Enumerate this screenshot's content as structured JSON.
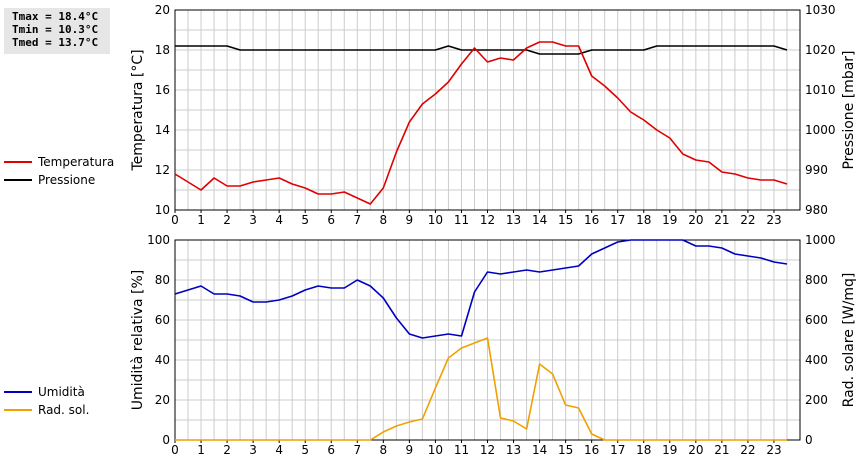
{
  "stats": {
    "tmax": "Tmax = 18.4°C",
    "tmin": "Tmin = 10.3°C",
    "tmed": "Tmed = 13.7°C"
  },
  "colors": {
    "temperature": "#e00000",
    "pressure": "#000000",
    "humidity": "#0000c0",
    "radiation": "#f0a000",
    "grid": "#cccccc"
  },
  "chart_data": [
    {
      "type": "line",
      "xlabel": "",
      "ylabel": "Temperatura [°C]",
      "y2label": "Pressione [mbar]",
      "xlim": [
        0,
        24
      ],
      "ylim": [
        10,
        20
      ],
      "y2lim": [
        980,
        1030
      ],
      "xticks": [
        "0",
        "1",
        "2",
        "3",
        "4",
        "5",
        "6",
        "7",
        "8",
        "9",
        "10",
        "11",
        "12",
        "13",
        "14",
        "15",
        "16",
        "17",
        "18",
        "19",
        "20",
        "21",
        "22",
        "23"
      ],
      "yticks": [
        "10",
        "12",
        "14",
        "16",
        "18",
        "20"
      ],
      "y2ticks": [
        "980",
        "990",
        "1000",
        "1010",
        "1020",
        "1030"
      ],
      "grid": true,
      "legend": "left",
      "series": [
        {
          "name": "Temperatura",
          "axis": "left",
          "color": "#e00000",
          "x": [
            0,
            0.5,
            1,
            1.5,
            2,
            2.5,
            3,
            3.5,
            4,
            4.5,
            5,
            5.5,
            6,
            6.5,
            7,
            7.5,
            8,
            8.5,
            9,
            9.5,
            10,
            10.5,
            11,
            11.5,
            12,
            12.5,
            13,
            13.5,
            14,
            14.5,
            15,
            15.5,
            16,
            16.5,
            17,
            17.5,
            18,
            18.5,
            19,
            19.5,
            20,
            20.5,
            21,
            21.5,
            22,
            22.5,
            23,
            23.5
          ],
          "y": [
            11.8,
            11.4,
            11.0,
            11.6,
            11.2,
            11.2,
            11.4,
            11.5,
            11.6,
            11.3,
            11.1,
            10.8,
            10.8,
            10.9,
            10.6,
            10.3,
            11.1,
            12.9,
            14.4,
            15.3,
            15.8,
            16.4,
            17.3,
            18.1,
            17.4,
            17.6,
            17.5,
            18.1,
            18.4,
            18.4,
            18.2,
            18.2,
            16.7,
            16.2,
            15.6,
            14.9,
            14.5,
            14.0,
            13.6,
            12.8,
            12.5,
            12.4,
            11.9,
            11.8,
            11.6,
            11.5,
            11.5,
            11.3
          ]
        },
        {
          "name": "Pressione",
          "axis": "right",
          "color": "#000000",
          "x": [
            0,
            0.5,
            1,
            1.5,
            2,
            2.5,
            3,
            3.5,
            4,
            4.5,
            5,
            5.5,
            6,
            6.5,
            7,
            7.5,
            8,
            8.5,
            9,
            9.5,
            10,
            10.5,
            11,
            11.5,
            12,
            12.5,
            13,
            13.5,
            14,
            14.5,
            15,
            15.5,
            16,
            16.5,
            17,
            17.5,
            18,
            18.5,
            19,
            19.5,
            20,
            20.5,
            21,
            21.5,
            22,
            22.5,
            23,
            23.5
          ],
          "y": [
            1021,
            1021,
            1021,
            1021,
            1021,
            1020,
            1020,
            1020,
            1020,
            1020,
            1020,
            1020,
            1020,
            1020,
            1020,
            1020,
            1020,
            1020,
            1020,
            1020,
            1020,
            1021,
            1020,
            1020,
            1020,
            1020,
            1020,
            1020,
            1019,
            1019,
            1019,
            1019,
            1020,
            1020,
            1020,
            1020,
            1020,
            1021,
            1021,
            1021,
            1021,
            1021,
            1021,
            1021,
            1021,
            1021,
            1021,
            1020
          ]
        }
      ]
    },
    {
      "type": "line",
      "xlabel": "",
      "ylabel": "Umidità relativa [%]",
      "y2label": "Rad. solare [W/mq]",
      "xlim": [
        0,
        24
      ],
      "ylim": [
        0,
        100
      ],
      "y2lim": [
        0,
        1000
      ],
      "xticks": [
        "0",
        "1",
        "2",
        "3",
        "4",
        "5",
        "6",
        "7",
        "8",
        "9",
        "10",
        "11",
        "12",
        "13",
        "14",
        "15",
        "16",
        "17",
        "18",
        "19",
        "20",
        "21",
        "22",
        "23"
      ],
      "yticks": [
        "0",
        "20",
        "40",
        "60",
        "80",
        "100"
      ],
      "y2ticks": [
        "0",
        "200",
        "400",
        "600",
        "800",
        "1000"
      ],
      "grid": true,
      "legend": "left",
      "series": [
        {
          "name": "Umidità",
          "axis": "left",
          "color": "#0000c0",
          "x": [
            0,
            0.5,
            1,
            1.5,
            2,
            2.5,
            3,
            3.5,
            4,
            4.5,
            5,
            5.5,
            6,
            6.5,
            7,
            7.5,
            8,
            8.5,
            9,
            9.5,
            10,
            10.5,
            11,
            11.5,
            12,
            12.5,
            13,
            13.5,
            14,
            14.5,
            15,
            15.5,
            16,
            16.5,
            17,
            17.5,
            18,
            18.5,
            19,
            19.5,
            20,
            20.5,
            21,
            21.5,
            22,
            22.5,
            23,
            23.5
          ],
          "y": [
            73,
            75,
            77,
            73,
            73,
            72,
            69,
            69,
            70,
            72,
            75,
            77,
            76,
            76,
            80,
            77,
            71,
            61,
            53,
            51,
            52,
            53,
            52,
            74,
            84,
            83,
            84,
            85,
            84,
            85,
            86,
            87,
            93,
            96,
            99,
            100,
            100,
            100,
            100,
            100,
            97,
            97,
            96,
            93,
            92,
            91,
            89,
            88
          ]
        },
        {
          "name": "Rad. sol.",
          "axis": "right",
          "color": "#f0a000",
          "x": [
            0,
            0.5,
            1,
            1.5,
            2,
            2.5,
            3,
            3.5,
            4,
            4.5,
            5,
            5.5,
            6,
            6.5,
            7,
            7.5,
            8,
            8.5,
            9,
            9.5,
            10,
            10.5,
            11,
            11.5,
            12,
            12.5,
            13,
            13.5,
            14,
            14.5,
            15,
            15.5,
            16,
            16.5,
            17,
            17.5,
            18,
            18.5,
            19,
            19.5,
            20,
            20.5,
            21,
            21.5,
            22,
            22.5,
            23,
            23.5
          ],
          "y": [
            0,
            0,
            0,
            0,
            0,
            0,
            0,
            0,
            0,
            0,
            0,
            0,
            0,
            0,
            0,
            0,
            40,
            70,
            90,
            105,
            260,
            410,
            460,
            485,
            510,
            110,
            95,
            55,
            380,
            330,
            175,
            160,
            30,
            0,
            0,
            0,
            0,
            0,
            0,
            0,
            0,
            0,
            0,
            0,
            0,
            0,
            0,
            0
          ]
        }
      ]
    }
  ]
}
